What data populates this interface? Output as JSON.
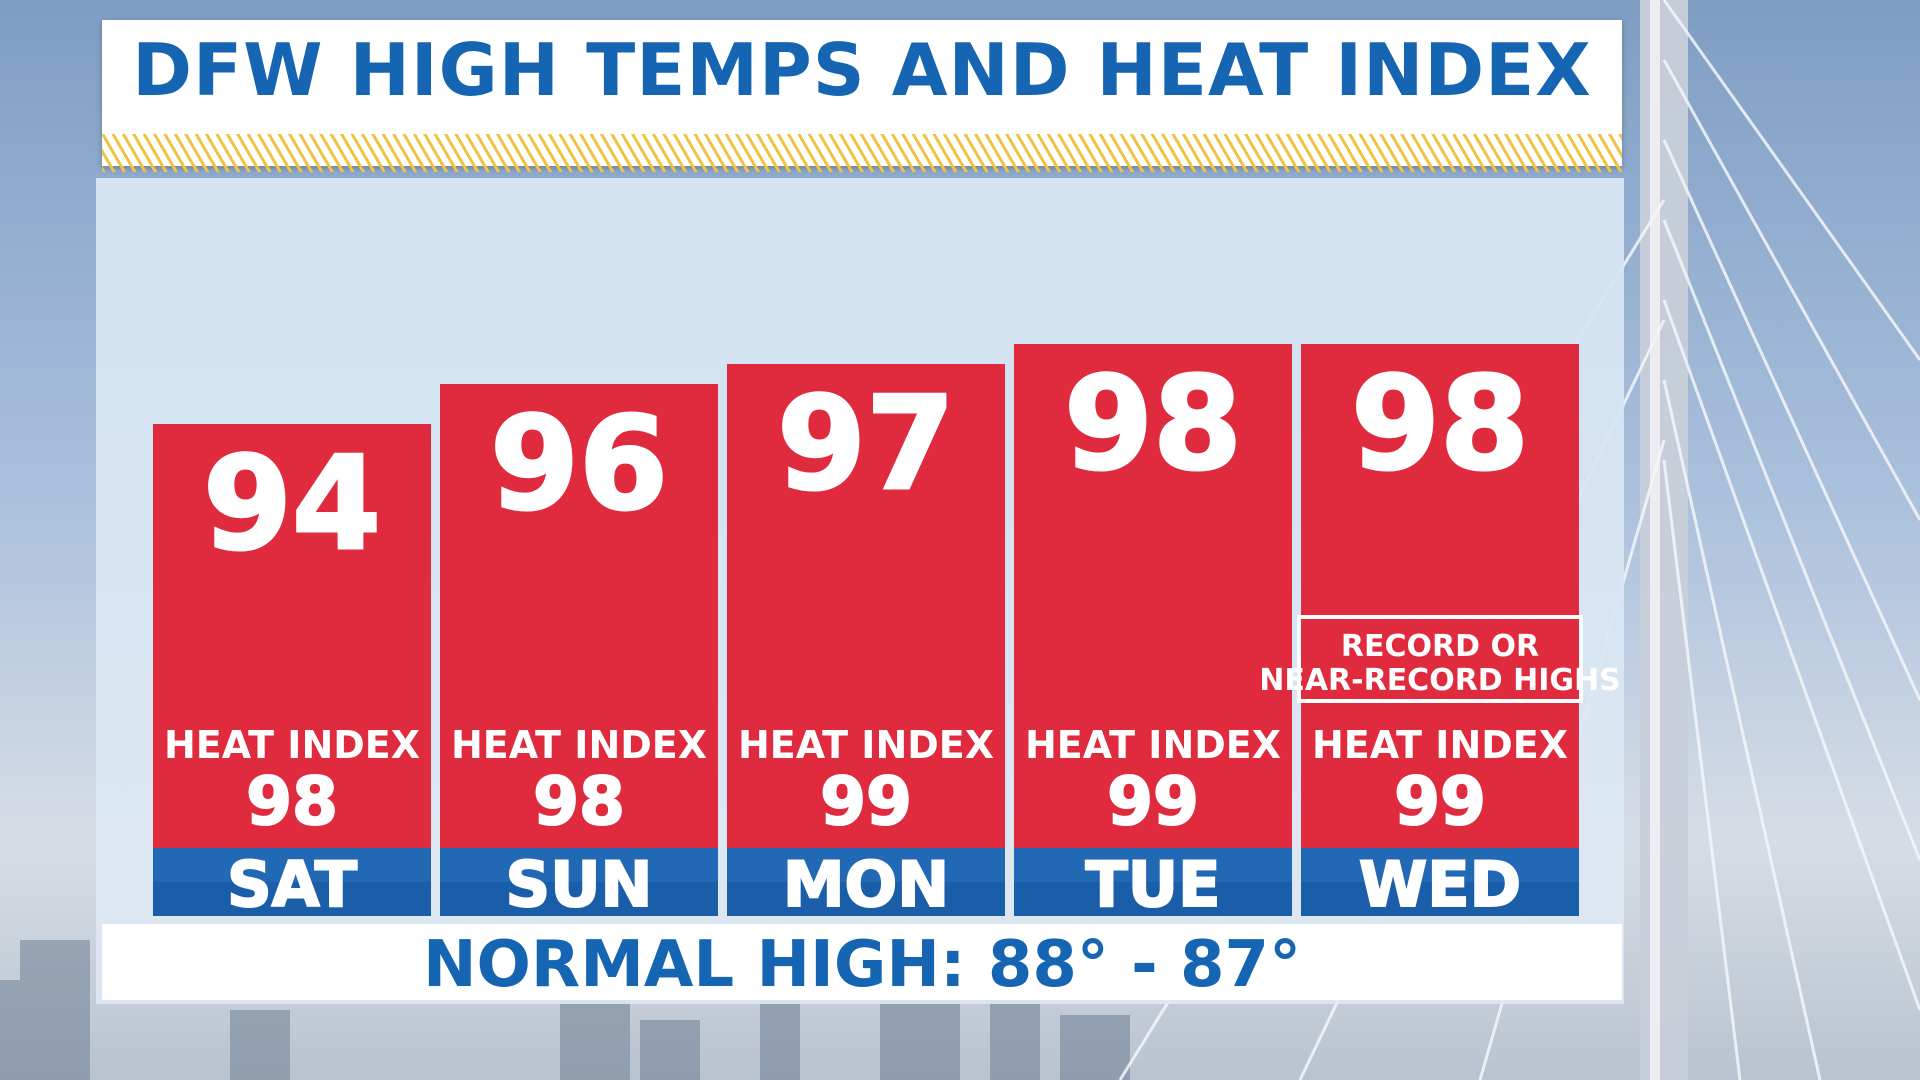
{
  "title": "DFW HIGH TEMPS AND HEAT INDEX",
  "footer": "NORMAL HIGH: 88° - 87°",
  "colors": {
    "bar": "#e02a3e",
    "day_band": "#1a5ea9",
    "title_text": "#1565b3",
    "stripe": "#f1c342"
  },
  "chart_data": {
    "type": "bar",
    "categories": [
      "SAT",
      "SUN",
      "MON",
      "TUE",
      "WED"
    ],
    "series": [
      {
        "values": [
          94,
          96,
          97,
          98,
          98
        ]
      }
    ],
    "heat_index_label": "HEAT INDEX",
    "heat_index": [
      98,
      98,
      99,
      99,
      99
    ],
    "annotation": {
      "category": "WED",
      "text_lines": [
        "RECORD OR",
        "NEAR-RECORD HIGHS"
      ]
    }
  }
}
